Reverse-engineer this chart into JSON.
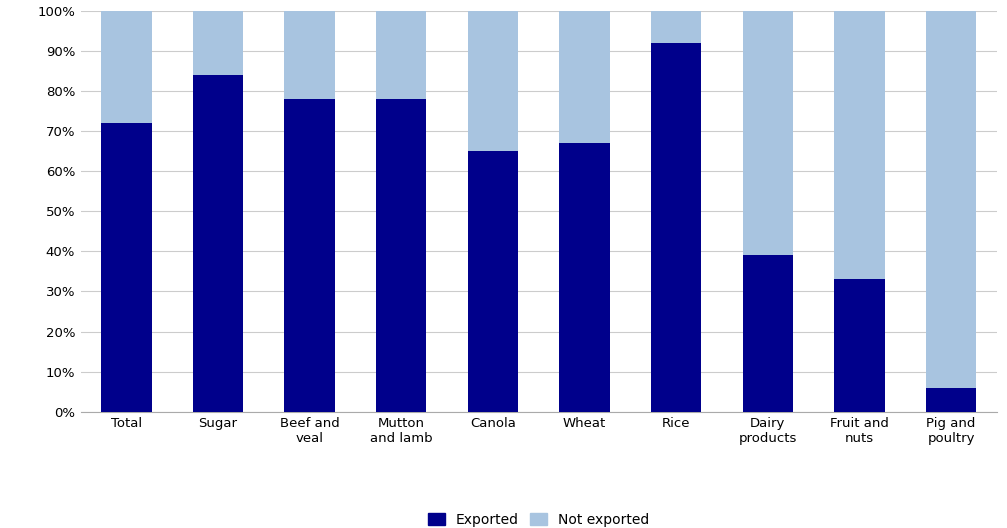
{
  "categories": [
    "Total",
    "Sugar",
    "Beef and\nveal",
    "Mutton\nand lamb",
    "Canola",
    "Wheat",
    "Rice",
    "Dairy\nproducts",
    "Fruit and\nnuts",
    "Pig and\npoultry"
  ],
  "exported": [
    72,
    84,
    78,
    78,
    65,
    67,
    92,
    39,
    33,
    6
  ],
  "not_exported": [
    28,
    16,
    22,
    22,
    35,
    33,
    8,
    61,
    67,
    94
  ],
  "exported_color": "#00008B",
  "not_exported_color": "#A8C4E0",
  "ylabel_ticks": [
    "0%",
    "10%",
    "20%",
    "30%",
    "40%",
    "50%",
    "60%",
    "70%",
    "80%",
    "90%",
    "100%"
  ],
  "ytick_values": [
    0,
    10,
    20,
    30,
    40,
    50,
    60,
    70,
    80,
    90,
    100
  ],
  "legend_exported": "Exported",
  "legend_not_exported": "Not exported",
  "background_color": "#ffffff",
  "grid_color": "#cccccc"
}
